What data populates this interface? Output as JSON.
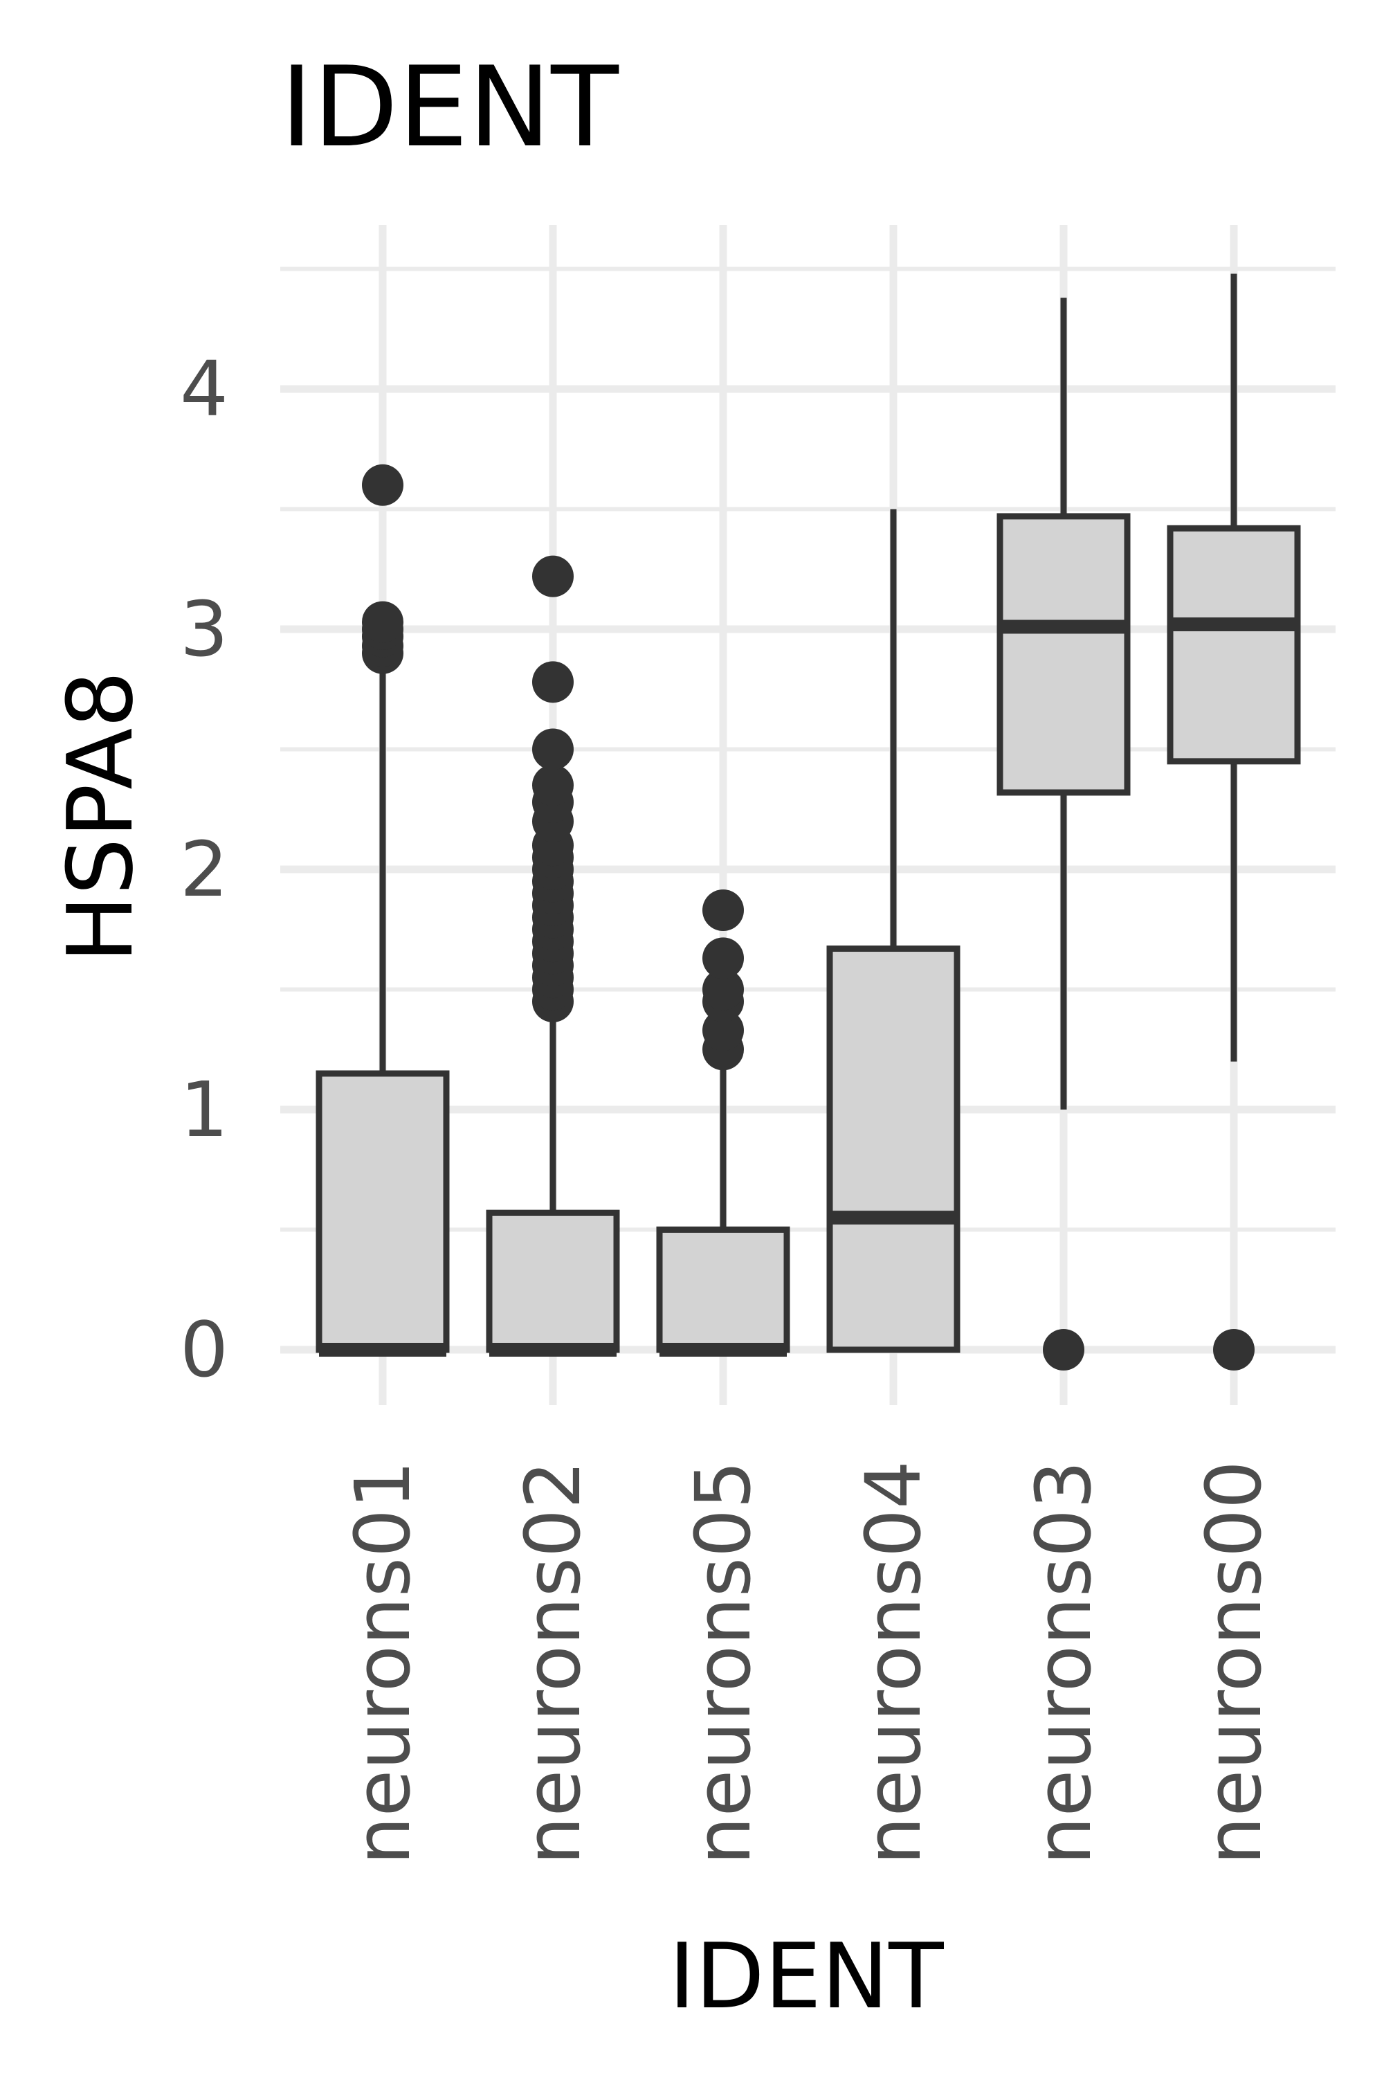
{
  "chart_data": {
    "type": "box",
    "title": "IDENT",
    "xlabel": "IDENT",
    "ylabel": "HSPA8",
    "categories": [
      "neurons01",
      "neurons02",
      "neurons05",
      "neurons04",
      "neurons03",
      "neurons00"
    ],
    "ylim": [
      -0.15,
      4.6
    ],
    "yticks": [
      "0",
      "1",
      "2",
      "3",
      "4"
    ],
    "grid": true,
    "legend": "none",
    "colors": {
      "box_fill": "#d3d3d3",
      "stroke": "#333333",
      "grid": "#ebebeb",
      "tick_text": "#4d4d4d",
      "title_text": "#000000"
    },
    "boxes": [
      {
        "category": "neurons01",
        "q1": 0.0,
        "median": 0.0,
        "q3": 1.15,
        "whisker_low": 0.0,
        "whisker_high": 2.85,
        "outliers": [
          2.9,
          2.93,
          2.97,
          3.0,
          3.03,
          3.6
        ]
      },
      {
        "category": "neurons02",
        "q1": 0.0,
        "median": 0.0,
        "q3": 0.57,
        "whisker_low": 0.0,
        "whisker_high": 1.42,
        "outliers": [
          1.45,
          1.5,
          1.55,
          1.6,
          1.65,
          1.7,
          1.75,
          1.8,
          1.85,
          1.9,
          1.95,
          2.0,
          2.05,
          2.1,
          2.2,
          2.28,
          2.35,
          2.5,
          2.78,
          3.22
        ]
      },
      {
        "category": "neurons05",
        "q1": 0.0,
        "median": 0.0,
        "q3": 0.5,
        "whisker_low": 0.0,
        "whisker_high": 1.2,
        "outliers": [
          1.25,
          1.33,
          1.45,
          1.5,
          1.63,
          1.83
        ]
      },
      {
        "category": "neurons04",
        "q1": 0.0,
        "median": 0.55,
        "q3": 1.67,
        "whisker_low": 0.0,
        "whisker_high": 3.5,
        "outliers": []
      },
      {
        "category": "neurons03",
        "q1": 2.32,
        "median": 3.01,
        "q3": 3.47,
        "whisker_low": 1.0,
        "whisker_high": 4.38,
        "outliers": [
          0.0
        ]
      },
      {
        "category": "neurons00",
        "q1": 2.45,
        "median": 3.02,
        "q3": 3.42,
        "whisker_low": 1.2,
        "whisker_high": 4.48,
        "outliers": [
          0.0
        ]
      }
    ]
  }
}
